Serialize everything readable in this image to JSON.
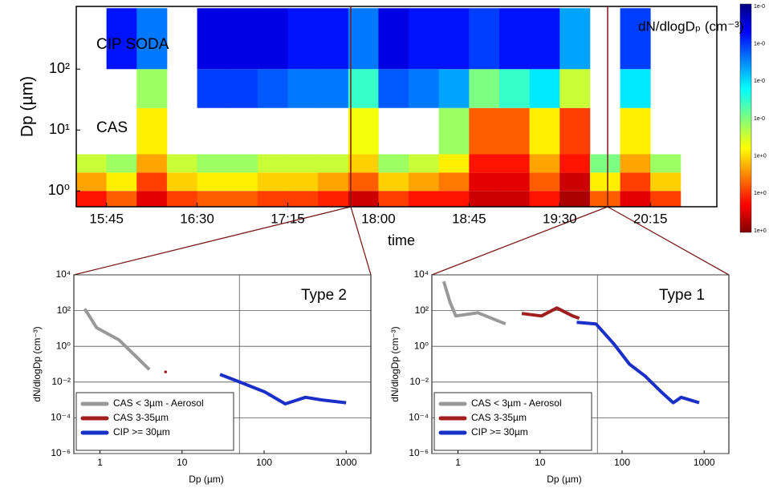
{
  "chart_data": [
    {
      "type": "heatmap",
      "y_label": "Dp (µm)",
      "x_label": "time",
      "annotations": [
        "CIP SODA",
        "CAS"
      ],
      "colorbar_label": "dN/dlogDₚ (cm⁻³)",
      "colorbar_labels": [
        "1e-0",
        "1e-0",
        "1e-0",
        "1e-0",
        "1e+0",
        "1e+0",
        "1e+0"
      ],
      "zlim": [
        0.001,
        10000
      ],
      "zscale": "log",
      "xlim": [
        930,
        1248
      ],
      "xticks": [
        {
          "value": 945,
          "label": "15:45"
        },
        {
          "value": 990,
          "label": "16:30"
        },
        {
          "value": 1035,
          "label": "17:15"
        },
        {
          "value": 1080,
          "label": "18:00"
        },
        {
          "value": 1125,
          "label": "18:45"
        },
        {
          "value": 1170,
          "label": "19:30"
        },
        {
          "value": 1215,
          "label": "20:15"
        }
      ],
      "ylim": [
        0.55,
        1070
      ],
      "yscale": "log",
      "yticks": [
        {
          "value": 1,
          "label": "10⁰"
        },
        {
          "value": 10,
          "label": "10¹"
        },
        {
          "value": 100,
          "label": "10²"
        }
      ],
      "x_edges": [
        930,
        945,
        960,
        975,
        990,
        1005,
        1020,
        1035,
        1050,
        1065,
        1080,
        1095,
        1110,
        1125,
        1140,
        1155,
        1170,
        1185,
        1200,
        1215,
        1230
      ],
      "y_edges": [
        0.55,
        1,
        2,
        4,
        23,
        100,
        1000
      ],
      "z": [
        [
          1000,
          100,
          10,
          null,
          null,
          null
        ],
        [
          300,
          30,
          5,
          null,
          null,
          0.01
        ],
        [
          2000,
          500,
          100,
          30,
          5,
          0.05
        ],
        [
          500,
          50,
          10,
          null,
          null,
          null
        ],
        [
          300,
          30,
          5,
          null,
          0.02,
          0.005
        ],
        [
          300,
          30,
          5,
          null,
          0.02,
          0.005
        ],
        [
          500,
          50,
          10,
          null,
          0.03,
          0.005
        ],
        [
          500,
          50,
          10,
          null,
          0.05,
          0.01
        ],
        [
          800,
          100,
          10,
          null,
          0.05,
          0.01
        ],
        [
          3000,
          300,
          50,
          20,
          1,
          0.05
        ],
        [
          500,
          50,
          5,
          null,
          0.03,
          0.005
        ],
        [
          1000,
          100,
          10,
          null,
          0.05,
          0.01
        ],
        [
          1000,
          200,
          30,
          5,
          0.1,
          0.01
        ],
        [
          3000,
          2000,
          1000,
          300,
          3,
          0.02
        ],
        [
          3000,
          2000,
          1000,
          300,
          1,
          0.01
        ],
        [
          1000,
          300,
          100,
          30,
          0.3,
          0.01
        ],
        [
          5000,
          3000,
          1000,
          500,
          10,
          0.1
        ],
        [
          300,
          30,
          3,
          null,
          null,
          null
        ],
        [
          2000,
          500,
          100,
          30,
          0.3,
          0.02
        ],
        [
          500,
          50,
          5,
          null,
          null,
          null
        ]
      ]
    },
    {
      "type": "line",
      "title": "Type 2",
      "x_label": "Dp (µm)",
      "y_label": "dN/dlogDp (cm⁻³)",
      "xscale": "log",
      "yscale": "log",
      "xlim": [
        0.48,
        2000
      ],
      "ylim": [
        1e-06,
        10000
      ],
      "xticks": [
        1,
        10,
        100,
        1000
      ],
      "yticks": [
        {
          "value": 10000,
          "label": "10⁴"
        },
        {
          "value": 100,
          "label": "10²"
        },
        {
          "value": 1,
          "label": "10⁰"
        },
        {
          "value": 0.01,
          "label": "10⁻²"
        },
        {
          "value": 0.0001,
          "label": "10⁻⁴"
        },
        {
          "value": 1e-06,
          "label": "10⁻⁶"
        }
      ],
      "grid": true,
      "vline": 50,
      "legend": "lower-left",
      "series": [
        {
          "name": "CAS < 3µm - Aerosol",
          "color": "#999999",
          "x": [
            0.65,
            0.76,
            0.91,
            1.7,
            4.0
          ],
          "values": [
            126,
            41,
            11,
            2.3,
            0.05
          ]
        },
        {
          "name": "CAS 3-35µm",
          "color": "#a01e1e",
          "x": [
            6.3
          ],
          "values": [
            0.037
          ]
        },
        {
          "name": "CIP >= 30µm",
          "color": "#1a2fc8",
          "x": [
            29,
            52,
            102,
            181,
            320,
            505,
            1000
          ],
          "values": [
            0.027,
            0.0095,
            0.0028,
            0.0006,
            0.0014,
            0.001,
            0.0007
          ]
        }
      ]
    },
    {
      "type": "line",
      "title": "Type 1",
      "x_label": "Dp (µm)",
      "y_label": "dN/dlogDp (cm⁻³)",
      "xscale": "log",
      "yscale": "log",
      "xlim": [
        0.48,
        2000
      ],
      "ylim": [
        1e-06,
        10000
      ],
      "xticks": [
        1,
        10,
        100,
        1000
      ],
      "yticks": [
        {
          "value": 10000,
          "label": "10⁴"
        },
        {
          "value": 100,
          "label": "10²"
        },
        {
          "value": 1,
          "label": "10⁰"
        },
        {
          "value": 0.01,
          "label": "10⁻²"
        },
        {
          "value": 0.0001,
          "label": "10⁻⁴"
        },
        {
          "value": 1e-06,
          "label": "10⁻⁶"
        }
      ],
      "grid": true,
      "vline": 50,
      "legend": "lower-left",
      "series": [
        {
          "name": "CAS < 3µm - Aerosol",
          "color": "#999999",
          "x": [
            0.67,
            0.8,
            0.94,
            1.75,
            3.8
          ],
          "values": [
            4300,
            290,
            50,
            76,
            18
          ]
        },
        {
          "name": "CAS 3-35µm",
          "color": "#a01e1e",
          "x": [
            6,
            10.4,
            16,
            25,
            30
          ],
          "values": [
            69,
            50,
            140,
            50,
            37
          ]
        },
        {
          "name": "CIP >= 30µm",
          "color": "#1a2fc8",
          "x": [
            28,
            48,
            79,
            123,
            190,
            300,
            420,
            525,
            870
          ],
          "values": [
            22,
            18,
            1.4,
            0.1,
            0.022,
            0.0028,
            0.0007,
            0.0014,
            0.0007
          ]
        }
      ]
    }
  ]
}
